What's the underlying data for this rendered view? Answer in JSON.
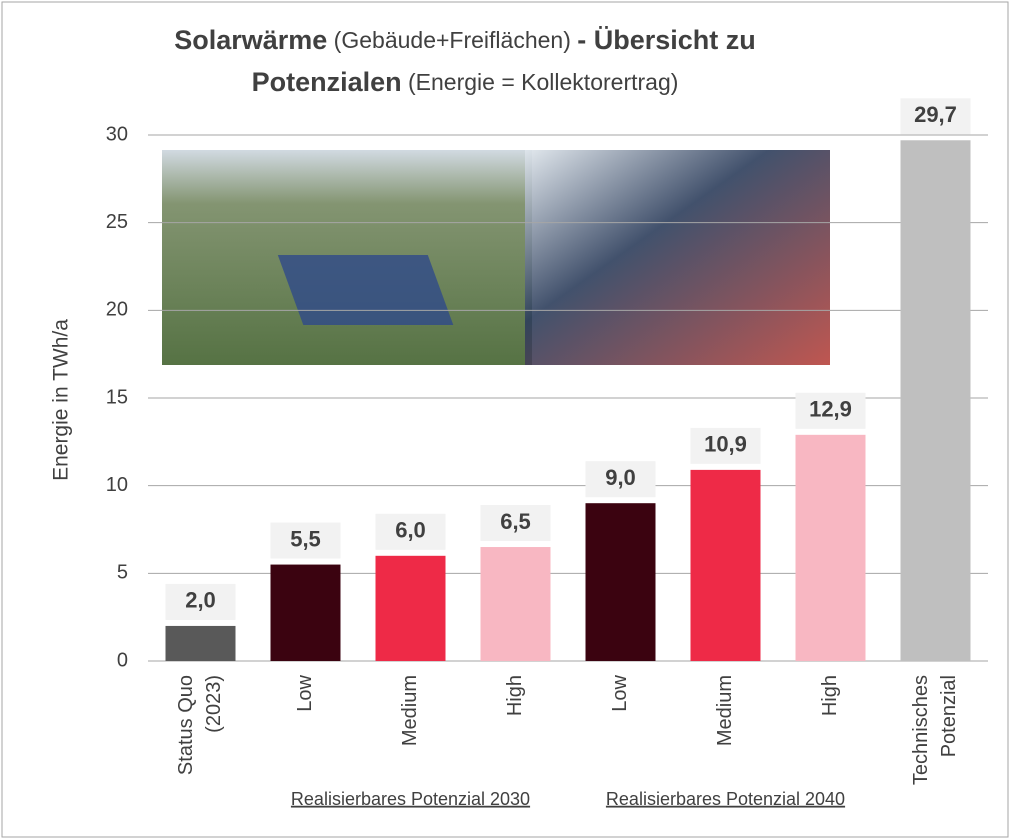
{
  "chart_data": {
    "type": "bar",
    "title": [
      [
        {
          "text": "Solarwärme",
          "bold": true
        },
        {
          "text": " (Gebäude+Freiflächen) ",
          "bold": false
        },
        {
          "text": "- Übersicht zu",
          "bold": true
        }
      ],
      [
        {
          "text": "Potenzialen",
          "bold": true
        },
        {
          "text": " (Energie = Kollektorertrag)",
          "bold": false
        }
      ]
    ],
    "y_label": "Energie in TWh/a",
    "categories": [
      [
        "Status Quo",
        "(2023)"
      ],
      [
        "Low"
      ],
      [
        "Medium"
      ],
      [
        "High"
      ],
      [
        "Low"
      ],
      [
        "Medium"
      ],
      [
        "High"
      ],
      [
        "Technisches",
        "Potenzial"
      ]
    ],
    "values": [
      2.0,
      5.5,
      6.0,
      6.5,
      9.0,
      10.9,
      12.9,
      29.7
    ],
    "value_labels": [
      "2,0",
      "5,5",
      "6,0",
      "6,5",
      "9,0",
      "10,9",
      "12,9",
      "29,7"
    ],
    "colors": [
      "#595959",
      "#3b0310",
      "#ee2a47",
      "#f8b7c2",
      "#3b0310",
      "#ee2a47",
      "#f8b7c2",
      "#bfbfbf"
    ],
    "groups": [
      {
        "label": "Realisierbares Potenzial 2030",
        "start": 1,
        "end": 3
      },
      {
        "label": "Realisierbares Potenzial 2040",
        "start": 4,
        "end": 6
      }
    ],
    "ylim": [
      0,
      30
    ],
    "yticks": [
      0,
      5,
      10,
      15,
      20,
      25,
      30
    ],
    "grid": true
  }
}
